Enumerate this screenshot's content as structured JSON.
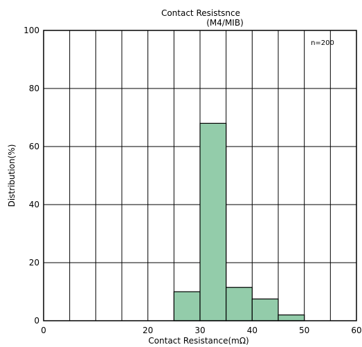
{
  "chart_data": {
    "type": "bar",
    "title": "Contact Resistsnce",
    "subtitle": "(M4/MIB)",
    "xlabel": "Contact Resistance(mΩ)",
    "ylabel": "Distribution(%)",
    "xlim": [
      0,
      60
    ],
    "ylim": [
      0,
      100
    ],
    "x_ticks": [
      0,
      20,
      30,
      40,
      50,
      60
    ],
    "y_ticks": [
      0,
      20,
      40,
      60,
      80,
      100
    ],
    "x_grid_step": 5,
    "y_grid_step": 20,
    "grid": true,
    "annotation": "n=200",
    "bins": [
      {
        "start": 25,
        "end": 30,
        "value": 10
      },
      {
        "start": 30,
        "end": 35,
        "value": 68
      },
      {
        "start": 35,
        "end": 40,
        "value": 11.5
      },
      {
        "start": 40,
        "end": 45,
        "value": 7.5
      },
      {
        "start": 45,
        "end": 50,
        "value": 2
      }
    ],
    "bar_color": "#93ccaa"
  }
}
